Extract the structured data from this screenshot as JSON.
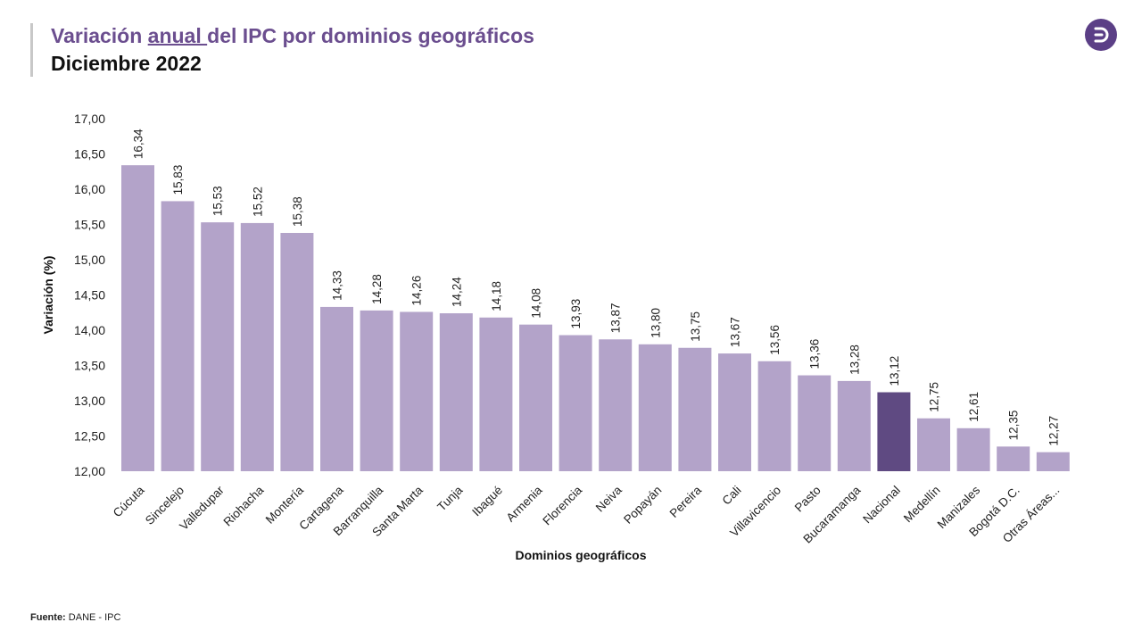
{
  "header": {
    "title_part1": "Variación ",
    "title_underlined": "anual ",
    "title_part2": "del IPC por dominios geográficos",
    "subtitle": "Diciembre 2022"
  },
  "logo": {
    "icon": "dane-logo-icon",
    "color": "#5b3f86"
  },
  "footer": {
    "source_label": "Fuente:",
    "source_text": " DANE - IPC"
  },
  "chart_data": {
    "type": "bar",
    "title": "Variación anual del IPC por dominios geográficos",
    "xlabel": "Dominios geográficos",
    "ylabel": "Variación (%)",
    "ylim": [
      12.0,
      17.0
    ],
    "yticks": [
      "12,00",
      "12,50",
      "13,00",
      "13,50",
      "14,00",
      "14,50",
      "15,00",
      "15,50",
      "16,00",
      "16,50",
      "17,00"
    ],
    "categories": [
      "Cúcuta",
      "Sincelejo",
      "Valledupar",
      "Riohacha",
      "Montería",
      "Cartagena",
      "Barranquilla",
      "Santa Marta",
      "Tunja",
      "Ibagué",
      "Armenia",
      "Florencia",
      "Neiva",
      "Popayán",
      "Pereira",
      "Cali",
      "Villavicencio",
      "Pasto",
      "Bucaramanga",
      "Nacional",
      "Medellín",
      "Manizales",
      "Bogotá D.C.",
      "Otras Áreas..."
    ],
    "values": [
      16.34,
      15.83,
      15.53,
      15.52,
      15.38,
      14.33,
      14.28,
      14.26,
      14.24,
      14.18,
      14.08,
      13.93,
      13.87,
      13.8,
      13.75,
      13.67,
      13.56,
      13.36,
      13.28,
      13.12,
      12.75,
      12.61,
      12.35,
      12.27
    ],
    "value_labels": [
      "16,34",
      "15,83",
      "15,53",
      "15,52",
      "15,38",
      "14,33",
      "14,28",
      "14,26",
      "14,24",
      "14,18",
      "14,08",
      "13,93",
      "13,87",
      "13,80",
      "13,75",
      "13,67",
      "13,56",
      "13,36",
      "13,28",
      "13,12",
      "12,75",
      "12,61",
      "12,35",
      "12,27"
    ],
    "colors": {
      "default": "#b3a3c9",
      "highlight": "#5f4a82"
    },
    "highlight_category": "Nacional",
    "grid": false,
    "legend": "none"
  }
}
